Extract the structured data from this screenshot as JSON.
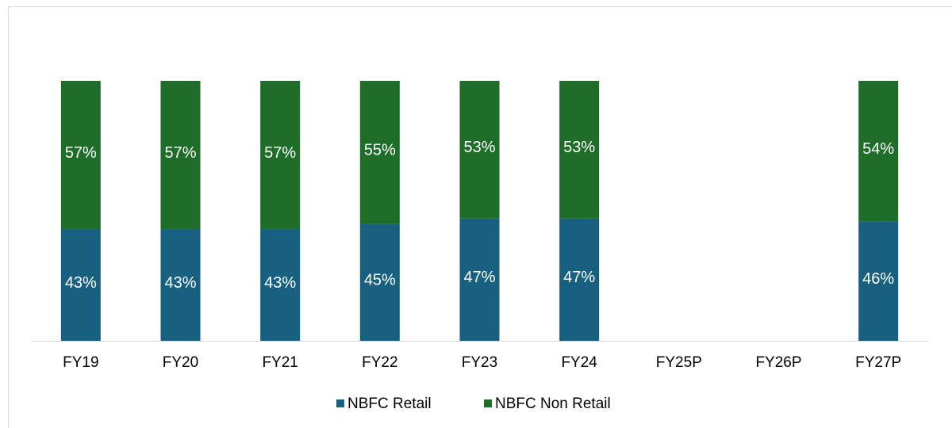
{
  "chart_data": {
    "type": "stacked_bar",
    "categories": [
      "FY19",
      "FY20",
      "FY21",
      "FY22",
      "FY23",
      "FY24",
      "FY25P",
      "FY26P",
      "FY27P"
    ],
    "series": [
      {
        "name": "NBFC Retail",
        "color": "#17607f",
        "values": [
          43,
          43,
          43,
          45,
          47,
          47,
          null,
          null,
          46
        ],
        "value_labels": [
          "43%",
          "43%",
          "43%",
          "45%",
          "47%",
          "47%",
          null,
          null,
          "46%"
        ]
      },
      {
        "name": "NBFC Non Retail",
        "color": "#1e6e2a",
        "values": [
          57,
          57,
          57,
          55,
          53,
          53,
          null,
          null,
          54
        ],
        "value_labels": [
          "57%",
          "57%",
          "57%",
          "55%",
          "53%",
          "53%",
          null,
          null,
          "54%"
        ]
      }
    ],
    "legend": "bottom"
  }
}
